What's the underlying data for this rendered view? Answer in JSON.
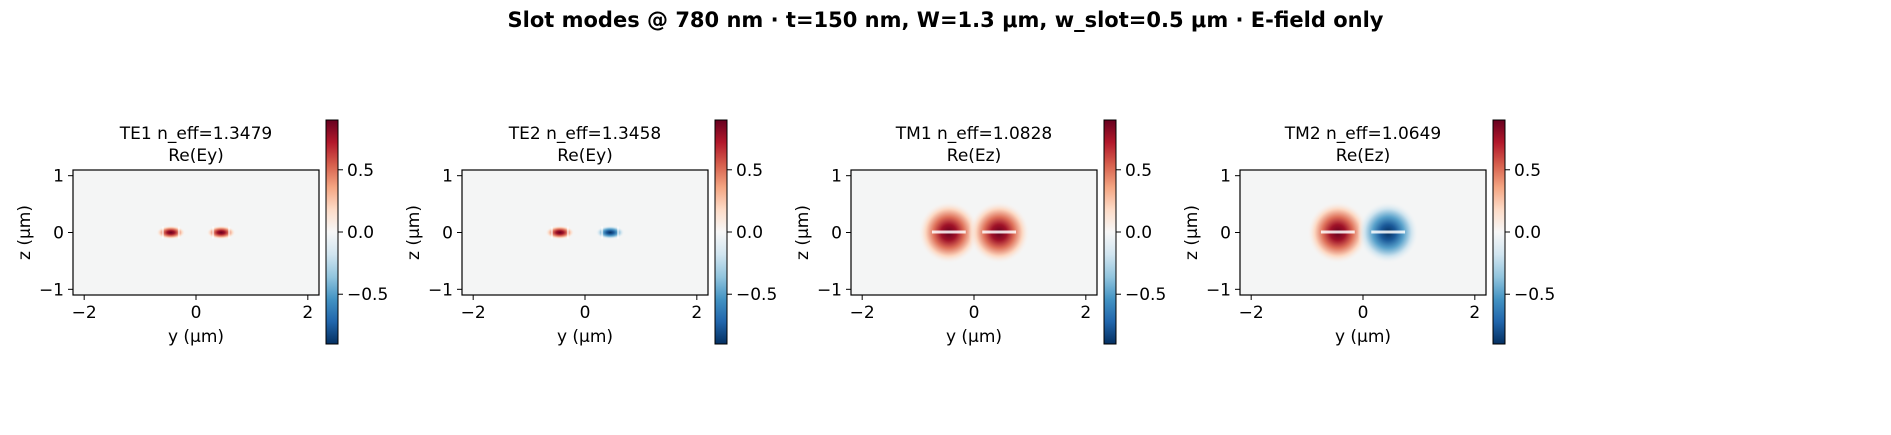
{
  "figure": {
    "title": "Slot modes @ 780 nm · t=150 nm, W=1.3 μm, w_slot=0.5 μm · E-field only"
  },
  "chart_data": [
    {
      "type": "heatmap",
      "title": "TE1  n_eff=1.3479",
      "subtitle": "Re(Ey)",
      "xlabel": "y (μm)",
      "ylabel": "z (μm)",
      "xlim": [
        -2.2,
        2.2
      ],
      "ylim": [
        -1.1,
        1.1
      ],
      "xticks": [
        -2,
        0,
        2
      ],
      "yticks": [
        -1,
        0,
        1
      ],
      "colorbar": {
        "ticks": [
          -0.5,
          0.0,
          0.5
        ],
        "tick_labels": [
          "−0.5",
          "0.0",
          "0.5"
        ],
        "range": [
          -0.9,
          0.9
        ],
        "cmap": "RdBu_r"
      },
      "lobes": [
        {
          "y_center": -0.45,
          "z_center": 0.0,
          "y_halfwidth": 0.26,
          "z_halfwidth": 0.12,
          "peak": 0.9
        },
        {
          "y_center": 0.45,
          "z_center": 0.0,
          "y_halfwidth": 0.26,
          "z_halfwidth": 0.12,
          "peak": 0.9
        }
      ]
    },
    {
      "type": "heatmap",
      "title": "TE2  n_eff=1.3458",
      "subtitle": "Re(Ey)",
      "xlabel": "y (μm)",
      "ylabel": "z (μm)",
      "xlim": [
        -2.2,
        2.2
      ],
      "ylim": [
        -1.1,
        1.1
      ],
      "xticks": [
        -2,
        0,
        2
      ],
      "yticks": [
        -1,
        0,
        1
      ],
      "colorbar": {
        "ticks": [
          -0.5,
          0.0,
          0.5
        ],
        "tick_labels": [
          "−0.5",
          "0.0",
          "0.5"
        ],
        "range": [
          -0.9,
          0.9
        ],
        "cmap": "RdBu_r"
      },
      "lobes": [
        {
          "y_center": -0.45,
          "z_center": 0.0,
          "y_halfwidth": 0.26,
          "z_halfwidth": 0.12,
          "peak": 0.9
        },
        {
          "y_center": 0.45,
          "z_center": 0.0,
          "y_halfwidth": 0.26,
          "z_halfwidth": 0.12,
          "peak": -0.9
        }
      ]
    },
    {
      "type": "heatmap",
      "title": "TM1  n_eff=1.0828",
      "subtitle": "Re(Ez)",
      "xlabel": "y (μm)",
      "ylabel": "z (μm)",
      "xlim": [
        -2.2,
        2.2
      ],
      "ylim": [
        -1.1,
        1.1
      ],
      "xticks": [
        -2,
        0,
        2
      ],
      "yticks": [
        -1,
        0,
        1
      ],
      "colorbar": {
        "ticks": [
          -0.5,
          0.0,
          0.5
        ],
        "tick_labels": [
          "−0.5",
          "0.0",
          "0.5"
        ],
        "range": [
          -0.9,
          0.9
        ],
        "cmap": "RdBu_r"
      },
      "lobes": [
        {
          "y_center": -0.45,
          "z_center": 0.0,
          "y_halfwidth": 0.55,
          "z_halfwidth": 0.55,
          "peak": 0.9
        },
        {
          "y_center": 0.45,
          "z_center": 0.0,
          "y_halfwidth": 0.55,
          "z_halfwidth": 0.55,
          "peak": 0.9
        }
      ]
    },
    {
      "type": "heatmap",
      "title": "TM2  n_eff=1.0649",
      "subtitle": "Re(Ez)",
      "xlabel": "y (μm)",
      "ylabel": "z (μm)",
      "xlim": [
        -2.2,
        2.2
      ],
      "ylim": [
        -1.1,
        1.1
      ],
      "xticks": [
        -2,
        0,
        2
      ],
      "yticks": [
        -1,
        0,
        1
      ],
      "colorbar": {
        "ticks": [
          -0.5,
          0.0,
          0.5
        ],
        "tick_labels": [
          "−0.5",
          "0.0",
          "0.5"
        ],
        "range": [
          -0.9,
          0.9
        ],
        "cmap": "RdBu_r"
      },
      "lobes": [
        {
          "y_center": -0.45,
          "z_center": 0.0,
          "y_halfwidth": 0.55,
          "z_halfwidth": 0.55,
          "peak": 0.9
        },
        {
          "y_center": 0.45,
          "z_center": 0.0,
          "y_halfwidth": 0.55,
          "z_halfwidth": 0.55,
          "peak": -0.9
        }
      ]
    }
  ],
  "colors": {
    "background": "#f4f5f5",
    "deep_red": "#67001f",
    "deep_blue": "#053061",
    "axis": "#000000"
  }
}
